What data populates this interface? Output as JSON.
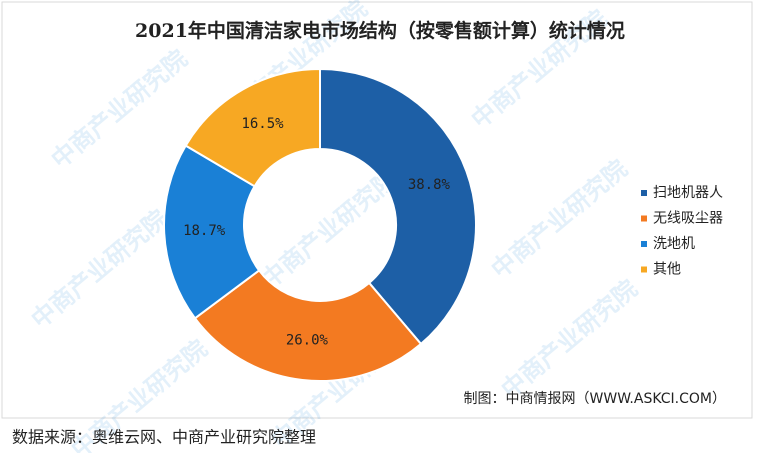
{
  "chart_data": {
    "type": "donut",
    "title": "2021年中国清洁家电市场结构（按零售额计算）统计情况",
    "categories": [
      "扫地机器人",
      "无线吸尘器",
      "洗地机",
      "其他"
    ],
    "values": [
      38.8,
      26.0,
      18.7,
      16.5
    ],
    "value_labels": [
      "38.8%",
      "26.0%",
      "18.7%",
      "16.5%"
    ],
    "colors": [
      "#1d5fa6",
      "#f37a21",
      "#1a80d6",
      "#f7a823"
    ],
    "legend": "right",
    "credit": "制图：中商情报网（WWW.ASKCI.COM）",
    "watermark": "中商产业研究院",
    "source": "数据来源：奥维云网、中商产业研究院整理"
  }
}
